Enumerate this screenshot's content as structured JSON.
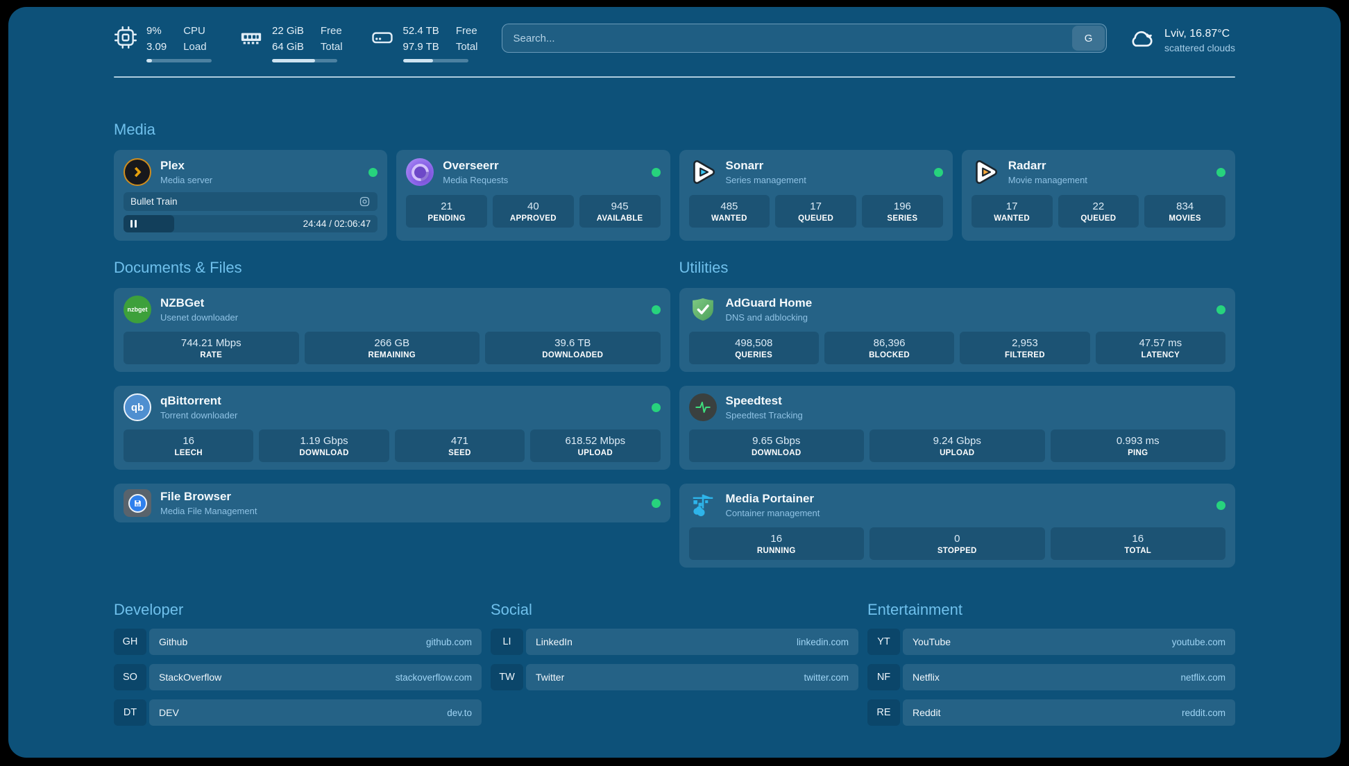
{
  "colors": {
    "page_bg": "#0d5179",
    "accent": "#6fc0ec",
    "status_online": "#27d37d"
  },
  "header": {
    "stats": [
      {
        "icon": "cpu-icon",
        "top_value": "9%",
        "bottom_value": "3.09",
        "top_label": "CPU",
        "bottom_label": "Load",
        "progress_pct": 9
      },
      {
        "icon": "memory-icon",
        "top_value": "22 GiB",
        "bottom_value": "64 GiB",
        "top_label": "Free",
        "bottom_label": "Total",
        "progress_pct": 66
      },
      {
        "icon": "disk-icon",
        "top_value": "52.4 TB",
        "bottom_value": "97.9 TB",
        "top_label": "Free",
        "bottom_label": "Total",
        "progress_pct": 46
      }
    ],
    "search": {
      "placeholder": "Search...",
      "engine_button": "G"
    },
    "weather": {
      "icon": "cloud-icon",
      "summary": "Lviv, 16.87°C",
      "condition": "scattered clouds"
    }
  },
  "media": {
    "title": "Media",
    "plex": {
      "name": "Plex",
      "description": "Media server",
      "now_playing": "Bullet Train",
      "time_display": "24:44 / 02:06:47",
      "progress_pct": 20
    },
    "overseerr": {
      "name": "Overseerr",
      "description": "Media Requests",
      "stats": [
        {
          "value": "21",
          "label": "PENDING"
        },
        {
          "value": "40",
          "label": "APPROVED"
        },
        {
          "value": "945",
          "label": "AVAILABLE"
        }
      ]
    },
    "sonarr": {
      "name": "Sonarr",
      "description": "Series management",
      "stats": [
        {
          "value": "485",
          "label": "WANTED"
        },
        {
          "value": "17",
          "label": "QUEUED"
        },
        {
          "value": "196",
          "label": "SERIES"
        }
      ]
    },
    "radarr": {
      "name": "Radarr",
      "description": "Movie management",
      "stats": [
        {
          "value": "17",
          "label": "WANTED"
        },
        {
          "value": "22",
          "label": "QUEUED"
        },
        {
          "value": "834",
          "label": "MOVIES"
        }
      ]
    }
  },
  "documents_files": {
    "title": "Documents & Files",
    "nzbget": {
      "name": "NZBGet",
      "description": "Usenet downloader",
      "icon_text": "nzbget",
      "stats": [
        {
          "value": "744.21 Mbps",
          "label": "RATE"
        },
        {
          "value": "266 GB",
          "label": "REMAINING"
        },
        {
          "value": "39.6 TB",
          "label": "DOWNLOADED"
        }
      ]
    },
    "qbittorrent": {
      "name": "qBittorrent",
      "description": "Torrent downloader",
      "icon_text": "qb",
      "stats": [
        {
          "value": "16",
          "label": "LEECH"
        },
        {
          "value": "1.19 Gbps",
          "label": "DOWNLOAD"
        },
        {
          "value": "471",
          "label": "SEED"
        },
        {
          "value": "618.52 Mbps",
          "label": "UPLOAD"
        }
      ]
    },
    "filebrowser": {
      "name": "File Browser",
      "description": "Media File Management"
    }
  },
  "utilities": {
    "title": "Utilities",
    "adguard": {
      "name": "AdGuard Home",
      "description": "DNS and adblocking",
      "stats": [
        {
          "value": "498,508",
          "label": "QUERIES"
        },
        {
          "value": "86,396",
          "label": "BLOCKED"
        },
        {
          "value": "2,953",
          "label": "FILTERED"
        },
        {
          "value": "47.57 ms",
          "label": "LATENCY"
        }
      ]
    },
    "speedtest": {
      "name": "Speedtest",
      "description": "Speedtest Tracking",
      "stats": [
        {
          "value": "9.65 Gbps",
          "label": "DOWNLOAD"
        },
        {
          "value": "9.24 Gbps",
          "label": "UPLOAD"
        },
        {
          "value": "0.993 ms",
          "label": "PING"
        }
      ]
    },
    "portainer": {
      "name": "Media Portainer",
      "description": "Container management",
      "stats": [
        {
          "value": "16",
          "label": "RUNNING"
        },
        {
          "value": "0",
          "label": "STOPPED"
        },
        {
          "value": "16",
          "label": "TOTAL"
        }
      ]
    }
  },
  "bookmarks": {
    "developer": {
      "title": "Developer",
      "items": [
        {
          "abbr": "GH",
          "name": "Github",
          "url": "github.com"
        },
        {
          "abbr": "SO",
          "name": "StackOverflow",
          "url": "stackoverflow.com"
        },
        {
          "abbr": "DT",
          "name": "DEV",
          "url": "dev.to"
        }
      ]
    },
    "social": {
      "title": "Social",
      "items": [
        {
          "abbr": "LI",
          "name": "LinkedIn",
          "url": "linkedin.com"
        },
        {
          "abbr": "TW",
          "name": "Twitter",
          "url": "twitter.com"
        }
      ]
    },
    "entertainment": {
      "title": "Entertainment",
      "items": [
        {
          "abbr": "YT",
          "name": "YouTube",
          "url": "youtube.com"
        },
        {
          "abbr": "NF",
          "name": "Netflix",
          "url": "netflix.com"
        },
        {
          "abbr": "RE",
          "name": "Reddit",
          "url": "reddit.com"
        }
      ]
    }
  }
}
